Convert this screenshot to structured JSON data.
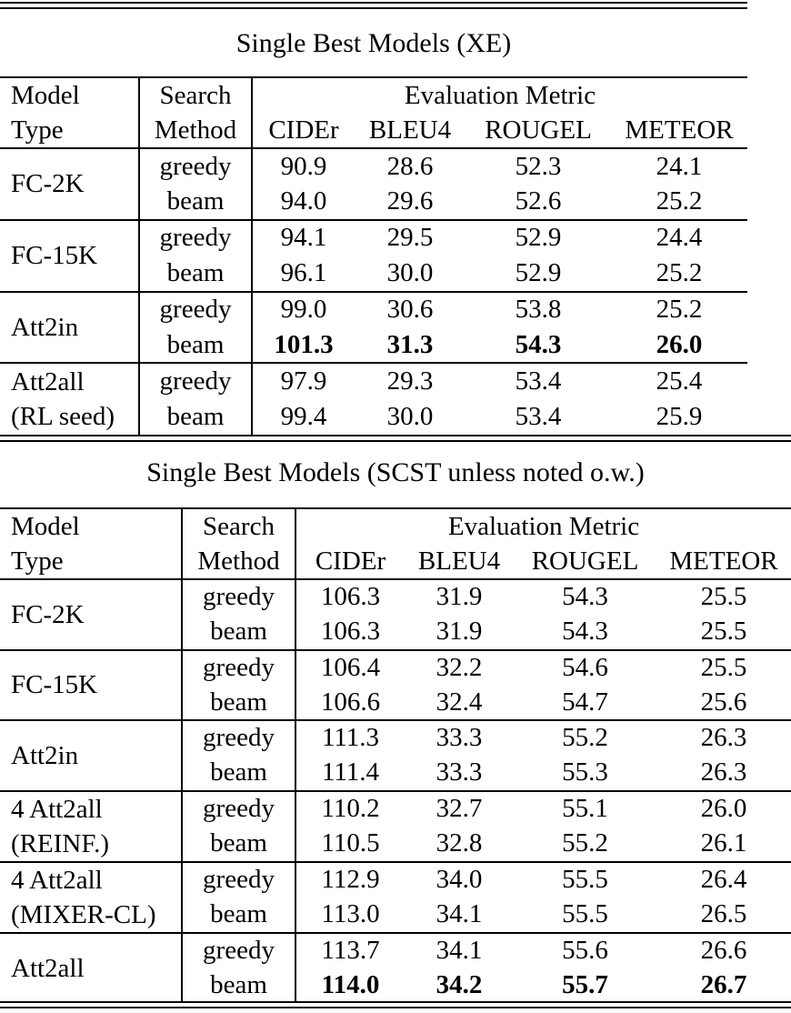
{
  "page": {
    "background": "#ffffff",
    "text_color": "#000000",
    "rule_color": "#000000"
  },
  "tables": [
    {
      "title": "Single Best Models (XE)",
      "header": {
        "model_line1": "Model",
        "model_line2": "Type",
        "search_line1": "Search",
        "search_line2": "Method",
        "metrics_label": "Evaluation Metric",
        "metrics": [
          "CIDEr",
          "BLEU4",
          "ROUGEL",
          "METEOR"
        ]
      },
      "groups": [
        {
          "model": [
            "FC-2K"
          ],
          "rows": [
            {
              "method": "greedy",
              "values": [
                "90.9",
                "28.6",
                "52.3",
                "24.1"
              ],
              "bold": false
            },
            {
              "method": "beam",
              "values": [
                "94.0",
                "29.6",
                "52.6",
                "25.2"
              ],
              "bold": false
            }
          ]
        },
        {
          "model": [
            "FC-15K"
          ],
          "rows": [
            {
              "method": "greedy",
              "values": [
                "94.1",
                "29.5",
                "52.9",
                "24.4"
              ],
              "bold": false
            },
            {
              "method": "beam",
              "values": [
                "96.1",
                "30.0",
                "52.9",
                "25.2"
              ],
              "bold": false
            }
          ]
        },
        {
          "model": [
            "Att2in"
          ],
          "rows": [
            {
              "method": "greedy",
              "values": [
                "99.0",
                "30.6",
                "53.8",
                "25.2"
              ],
              "bold": false
            },
            {
              "method": "beam",
              "values": [
                "101.3",
                "31.3",
                "54.3",
                "26.0"
              ],
              "bold": true
            }
          ]
        },
        {
          "model": [
            "Att2all",
            "(RL seed)"
          ],
          "rows": [
            {
              "method": "greedy",
              "values": [
                "97.9",
                "29.3",
                "53.4",
                "25.4"
              ],
              "bold": false
            },
            {
              "method": "beam",
              "values": [
                "99.4",
                "30.0",
                "53.4",
                "25.9"
              ],
              "bold": false
            }
          ]
        }
      ]
    },
    {
      "title": "Single Best Models (SCST unless noted o.w.)",
      "header": {
        "model_line1": "Model",
        "model_line2": "Type",
        "search_line1": "Search",
        "search_line2": "Method",
        "metrics_label": "Evaluation Metric",
        "metrics": [
          "CIDEr",
          "BLEU4",
          "ROUGEL",
          "METEOR"
        ]
      },
      "groups": [
        {
          "model": [
            "FC-2K"
          ],
          "rows": [
            {
              "method": "greedy",
              "values": [
                "106.3",
                "31.9",
                "54.3",
                "25.5"
              ],
              "bold": false
            },
            {
              "method": "beam",
              "values": [
                "106.3",
                "31.9",
                "54.3",
                "25.5"
              ],
              "bold": false
            }
          ]
        },
        {
          "model": [
            "FC-15K"
          ],
          "rows": [
            {
              "method": "greedy",
              "values": [
                "106.4",
                "32.2",
                "54.6",
                "25.5"
              ],
              "bold": false
            },
            {
              "method": "beam",
              "values": [
                "106.6",
                "32.4",
                "54.7",
                "25.6"
              ],
              "bold": false
            }
          ]
        },
        {
          "model": [
            "Att2in"
          ],
          "rows": [
            {
              "method": "greedy",
              "values": [
                "111.3",
                "33.3",
                "55.2",
                "26.3"
              ],
              "bold": false
            },
            {
              "method": "beam",
              "values": [
                "111.4",
                "33.3",
                "55.3",
                "26.3"
              ],
              "bold": false
            }
          ]
        },
        {
          "model": [
            "4 Att2all",
            "(REINF.)"
          ],
          "rows": [
            {
              "method": "greedy",
              "values": [
                "110.2",
                "32.7",
                "55.1",
                "26.0"
              ],
              "bold": false
            },
            {
              "method": "beam",
              "values": [
                "110.5",
                "32.8",
                "55.2",
                "26.1"
              ],
              "bold": false
            }
          ]
        },
        {
          "model": [
            "4 Att2all",
            "(MIXER-CL)"
          ],
          "rows": [
            {
              "method": "greedy",
              "values": [
                "112.9",
                "34.0",
                "55.5",
                "26.4"
              ],
              "bold": false
            },
            {
              "method": "beam",
              "values": [
                "113.0",
                "34.1",
                "55.5",
                "26.5"
              ],
              "bold": false
            }
          ]
        },
        {
          "model": [
            "Att2all"
          ],
          "rows": [
            {
              "method": "greedy",
              "values": [
                "113.7",
                "34.1",
                "55.6",
                "26.6"
              ],
              "bold": false
            },
            {
              "method": "beam",
              "values": [
                "114.0",
                "34.2",
                "55.7",
                "26.7"
              ],
              "bold": true
            }
          ]
        }
      ]
    }
  ]
}
